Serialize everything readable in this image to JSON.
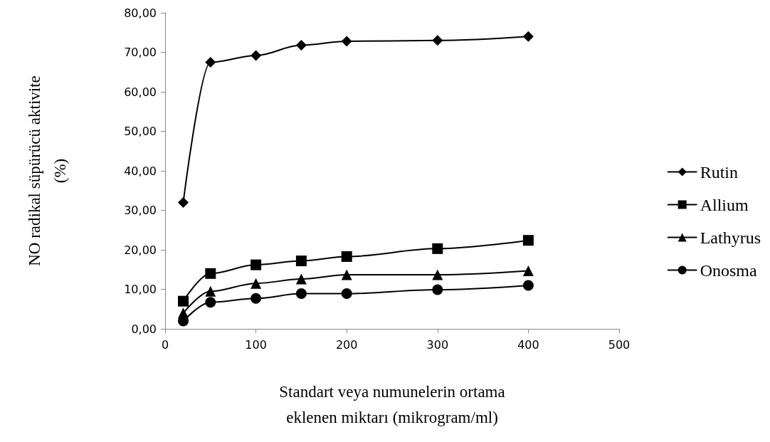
{
  "chart_data": {
    "type": "line",
    "xlabel": "Standart veya numunelerin ortama\neklenen miktarı (mikrogram/ml)",
    "ylabel": "NO radikal süpürücü aktivite\n(%)",
    "x": [
      20,
      50,
      100,
      150,
      200,
      300,
      400
    ],
    "series": [
      {
        "name": "Rutin",
        "color": "#000000",
        "marker": "diamond",
        "values": [
          32,
          67.5,
          69.2,
          71.8,
          72.8,
          73.0,
          74.0
        ]
      },
      {
        "name": "Allium",
        "color": "#000000",
        "marker": "square",
        "values": [
          7,
          14,
          16.2,
          17.2,
          18.3,
          20.3,
          22.4
        ]
      },
      {
        "name": "Lathyrus",
        "color": "#000000",
        "marker": "triangle",
        "values": [
          4,
          9.5,
          11.5,
          12.6,
          13.7,
          13.7,
          14.7
        ]
      },
      {
        "name": "Onosma",
        "color": "#000000",
        "marker": "circle",
        "values": [
          2,
          6.7,
          7.7,
          8.9,
          8.9,
          9.9,
          11.0
        ]
      }
    ],
    "xlim": [
      0,
      500
    ],
    "xticks": [
      0,
      100,
      200,
      300,
      400,
      500
    ],
    "ylim": [
      0,
      80
    ],
    "yticks": [
      {
        "value": 0,
        "label": "0,00"
      },
      {
        "value": 10,
        "label": "10,00"
      },
      {
        "value": 20,
        "label": "20,00"
      },
      {
        "value": 30,
        "label": "30,00"
      },
      {
        "value": 40,
        "label": "40,00"
      },
      {
        "value": 50,
        "label": "50,00"
      },
      {
        "value": 60,
        "label": "60,00"
      },
      {
        "value": 70,
        "label": "70,00"
      },
      {
        "value": 80,
        "label": "80,00"
      }
    ],
    "grid": false,
    "legend": "right",
    "line_style": "solid"
  }
}
